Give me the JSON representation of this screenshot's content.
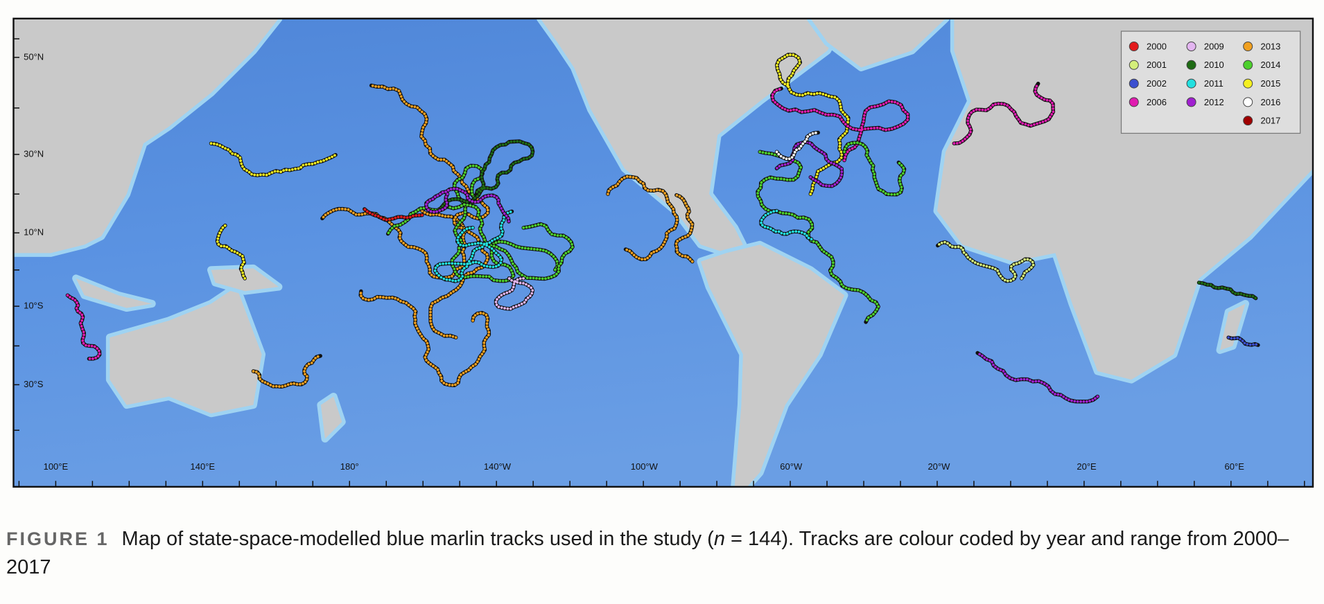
{
  "map": {
    "x_labels": [
      "100°E",
      "140°E",
      "180°",
      "140°W",
      "100°W",
      "60°W",
      "20°W",
      "20°E",
      "60°E"
    ],
    "y_labels": [
      "50°N",
      "30°N",
      "10°N",
      "10°S",
      "30°S"
    ],
    "legend": [
      {
        "label": "2000",
        "color": "#e31a1c"
      },
      {
        "label": "2001",
        "color": "#d4ee7a"
      },
      {
        "label": "2002",
        "color": "#3b4fd0"
      },
      {
        "label": "2006",
        "color": "#e01bb0"
      },
      {
        "label": "2009",
        "color": "#e3b5f0"
      },
      {
        "label": "2010",
        "color": "#1e6b14"
      },
      {
        "label": "2011",
        "color": "#22e0e0"
      },
      {
        "label": "2012",
        "color": "#a020d0"
      },
      {
        "label": "2013",
        "color": "#f0a020"
      },
      {
        "label": "2014",
        "color": "#4cd02c"
      },
      {
        "label": "2015",
        "color": "#f5f020"
      },
      {
        "label": "2016",
        "color": "#ffffff"
      },
      {
        "label": "2017",
        "color": "#a00000"
      }
    ]
  },
  "caption": {
    "label": "FIGURE 1",
    "text_before": "Map of state-space-modelled blue marlin tracks used in the study (",
    "italic": "n",
    "text_after": " = 144). Tracks are colour coded by year and range from 2000–2017"
  }
}
